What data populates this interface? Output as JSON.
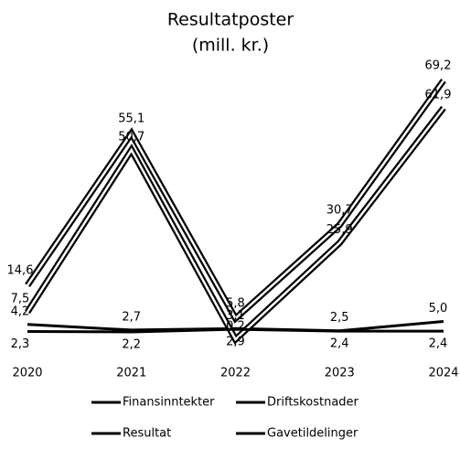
{
  "chart_data": {
    "type": "line",
    "title": "Resultatposter",
    "subtitle": "(mill. kr.)",
    "categories": [
      "2020",
      "2021",
      "2022",
      "2023",
      "2024"
    ],
    "series": [
      {
        "name": "Finansinntekter",
        "color": "#000000",
        "values": [
          14.6,
          55.1,
          5.8,
          30.7,
          69.2
        ],
        "value_labels": [
          "14,6",
          "55,1",
          "5,8",
          "30,7",
          "69,2"
        ]
      },
      {
        "name": "Driftskostnader",
        "color": "#000000",
        "values": [
          4.2,
          2.7,
          3.1,
          2.5,
          5.0
        ],
        "value_labels": [
          "4,2",
          "2,7",
          "3,1",
          "2,5",
          "5,0"
        ]
      },
      {
        "name": "Resultat",
        "color": "#000000",
        "values": [
          7.5,
          50.7,
          0.2,
          25.9,
          61.9
        ],
        "value_labels": [
          "7,5",
          "50,7",
          "0,2",
          "25,9",
          "61,9"
        ]
      },
      {
        "name": "Gavetildelinger",
        "color": "#000000",
        "values": [
          2.3,
          2.2,
          2.9,
          2.4,
          2.4
        ],
        "value_labels": [
          "2,3",
          "2,2",
          "2,9",
          "2,4",
          "2,4"
        ]
      }
    ],
    "legend": "bottom"
  }
}
